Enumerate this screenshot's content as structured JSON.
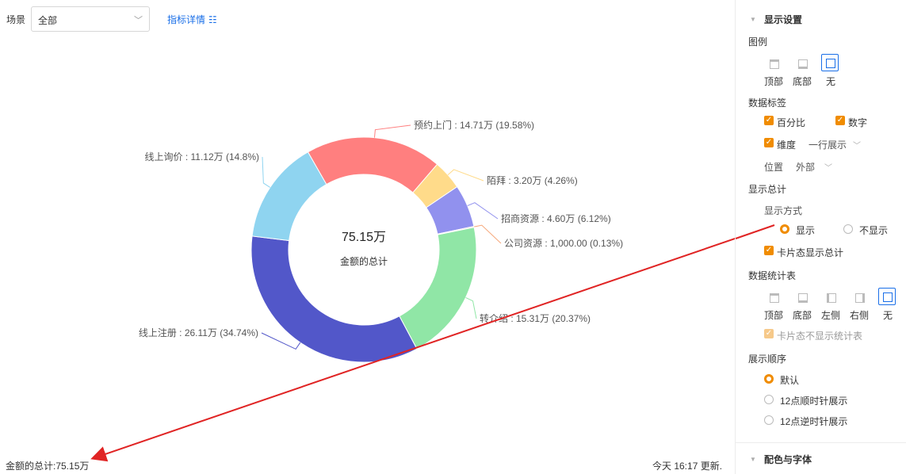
{
  "filter": {
    "label": "场景",
    "value": "全部",
    "detail_link": "指标详情"
  },
  "chart_data": {
    "type": "pie",
    "center_value": "75.15万",
    "center_label": "金额的总计",
    "slices": [
      {
        "name": "预约上门",
        "label": "14.71万 (19.58%)",
        "value": 14.71,
        "color": "#ff7f7f"
      },
      {
        "name": "陌拜",
        "label": "3.20万 (4.26%)",
        "value": 3.2,
        "color": "#ffdb8a"
      },
      {
        "name": "招商资源",
        "label": "4.60万 (6.12%)",
        "value": 4.6,
        "color": "#9191ee"
      },
      {
        "name": "公司资源",
        "label": "1,000.00 (0.13%)",
        "value": 0.1,
        "color": "#f6a77a"
      },
      {
        "name": "转介绍",
        "label": "15.31万 (20.37%)",
        "value": 15.31,
        "color": "#90e6a6"
      },
      {
        "name": "线上注册",
        "label": "26.11万 (34.74%)",
        "value": 26.11,
        "color": "#5257c9"
      },
      {
        "name": "线上询价",
        "label": "11.12万 (14.8%)",
        "value": 11.12,
        "color": "#8fd4f0"
      }
    ]
  },
  "footer": {
    "total": "金额的总计:75.15万",
    "updated": "今天 16:17 更新."
  },
  "panel": {
    "display_settings": "显示设置",
    "legend": {
      "title": "图例",
      "options": [
        "顶部",
        "底部",
        "无"
      ],
      "selected": "无"
    },
    "data_labels": {
      "title": "数据标签",
      "percent": "百分比",
      "number": "数字",
      "dimension": "维度",
      "dimension_mode": "一行展示",
      "position_label": "位置",
      "position_value": "外部"
    },
    "show_total": {
      "title": "显示总计",
      "mode_label": "显示方式",
      "show": "显示",
      "hide": "不显示",
      "card_total": "卡片态显示总计"
    },
    "stats_table": {
      "title": "数据统计表",
      "options": [
        "顶部",
        "底部",
        "左侧",
        "右侧",
        "无"
      ],
      "selected": "无",
      "card_hide": "卡片态不显示统计表"
    },
    "order": {
      "title": "展示顺序",
      "options": [
        "默认",
        "12点顺时针展示",
        "12点逆时针展示"
      ],
      "selected": "默认"
    },
    "color_font": "配色与字体"
  },
  "colors": {
    "accent": "#f08c00",
    "link": "#1a6fe8",
    "annotation": "#e02424"
  }
}
